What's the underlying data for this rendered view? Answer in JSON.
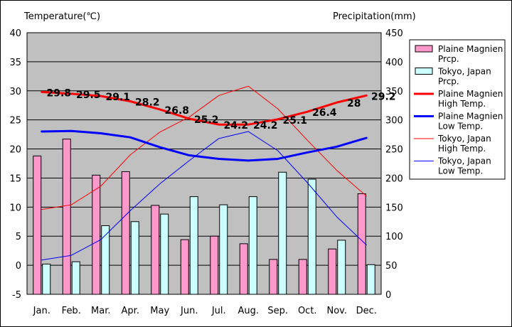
{
  "chart_data": {
    "type": "bar+line",
    "left_axis_title": "Temperature(℃)",
    "right_axis_title": "Precipitation(mm)",
    "categories": [
      "Jan.",
      "Feb.",
      "Mar.",
      "Apr.",
      "May",
      "Jun.",
      "Jul.",
      "Aug.",
      "Sep.",
      "Oct.",
      "Nov.",
      "Dec."
    ],
    "left_ylim": [
      -5,
      40
    ],
    "left_ticks": [
      40,
      35,
      30,
      25,
      20,
      15,
      10,
      5,
      0,
      -5
    ],
    "right_ylim": [
      0,
      450
    ],
    "right_ticks": [
      450,
      400,
      350,
      300,
      250,
      200,
      150,
      100,
      50,
      0
    ],
    "grid": true,
    "legend_position": "right",
    "series": [
      {
        "name": "Plaine Magnien Prcp.",
        "kind": "bar",
        "axis": "right",
        "color": "#ff99cc",
        "values": [
          238,
          267,
          205,
          211,
          153,
          94,
          100,
          87,
          60,
          60,
          78,
          173
        ]
      },
      {
        "name": "Tokyo, Japan Prcp.",
        "kind": "bar",
        "axis": "right",
        "color": "#ccffff",
        "values": [
          52,
          56,
          118,
          125,
          138,
          168,
          154,
          168,
          210,
          198,
          93,
          51
        ]
      },
      {
        "name": "Plaine Magnien High Temp.",
        "kind": "line",
        "axis": "left",
        "color": "#ff0000",
        "width": 3,
        "values": [
          29.8,
          29.5,
          29.1,
          28.2,
          26.8,
          25.2,
          24.2,
          24.2,
          25.1,
          26.4,
          28,
          29.2
        ],
        "labels": [
          "29.8",
          "29.5",
          "29.1",
          "28.2",
          "26.8",
          "25.2",
          "24.2",
          "24.2",
          "25.1",
          "26.4",
          "28",
          "29.2"
        ]
      },
      {
        "name": "Plaine Magnien Low Temp.",
        "kind": "line",
        "axis": "left",
        "color": "#0000ff",
        "width": 3,
        "values": [
          23,
          23.1,
          22.7,
          22,
          20.3,
          18.9,
          18.3,
          18,
          18.3,
          19.4,
          20.4,
          21.9
        ]
      },
      {
        "name": "Tokyo, Japan High Temp.",
        "kind": "line",
        "axis": "left",
        "color": "#ff0000",
        "width": 1,
        "values": [
          9.6,
          10.4,
          13.6,
          19,
          22.9,
          25.5,
          29.2,
          30.8,
          26.9,
          21.5,
          16.3,
          11.9
        ]
      },
      {
        "name": "Tokyo, Japan Low Temp.",
        "kind": "line",
        "axis": "left",
        "color": "#0000ff",
        "width": 1,
        "values": [
          0.9,
          1.7,
          4.4,
          9.4,
          14,
          18,
          21.8,
          23,
          19.7,
          14.2,
          8.3,
          3.5
        ]
      }
    ],
    "legend": [
      {
        "text": "Plaine Magnien\nPrcp.",
        "type": "box",
        "color": "#ff99cc"
      },
      {
        "text": "Tokyo, Japan\nPrcp.",
        "type": "box",
        "color": "#ccffff"
      },
      {
        "text": "Plaine Magnien\nHigh Temp.",
        "type": "line",
        "color": "#ff0000",
        "width": 3
      },
      {
        "text": "Plaine Magnien\nLow Temp.",
        "type": "line",
        "color": "#0000ff",
        "width": 3
      },
      {
        "text": "Tokyo, Japan\nHigh Temp.",
        "type": "line",
        "color": "#ff0000",
        "width": 1
      },
      {
        "text": "Tokyo, Japan\nLow Temp.",
        "type": "line",
        "color": "#0000ff",
        "width": 1
      }
    ],
    "plot_background": "#c0c0c0"
  }
}
